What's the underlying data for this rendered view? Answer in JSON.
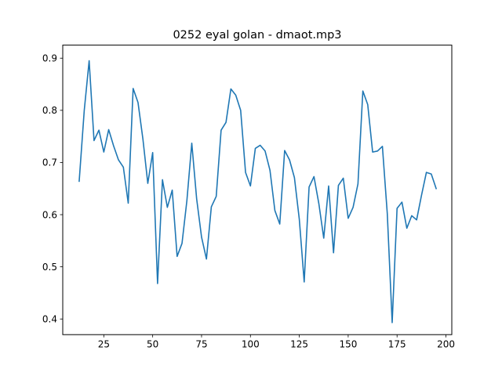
{
  "chart_data": {
    "type": "line",
    "title": "0252 eyal golan - dmaot.mp3",
    "xlabel": "",
    "ylabel": "",
    "xlim": [
      4,
      203
    ],
    "ylim": [
      0.37,
      0.925
    ],
    "grid": false,
    "xticks": [
      25,
      50,
      75,
      100,
      125,
      150,
      175,
      200
    ],
    "yticks": [
      0.4,
      0.5,
      0.6,
      0.7,
      0.8,
      0.9
    ],
    "xtick_labels": [
      "25",
      "50",
      "75",
      "100",
      "125",
      "150",
      "175",
      "200"
    ],
    "ytick_labels": [
      "0.4",
      "0.5",
      "0.6",
      "0.7",
      "0.8",
      "0.9"
    ],
    "line_color": "#1f77b4",
    "series": [
      {
        "x": [
          12.4,
          15.0,
          17.5,
          20.0,
          22.5,
          25.0,
          27.5,
          30.0,
          32.5,
          35.0,
          37.5,
          40.0,
          42.5,
          45.0,
          47.5,
          50.0,
          52.5,
          55.0,
          57.5,
          60.0,
          62.5,
          65.0,
          67.5,
          70.0,
          72.5,
          75.0,
          77.5,
          80.0,
          82.5,
          85.0,
          87.5,
          90.0,
          92.5,
          95.0,
          97.5,
          100.0,
          102.5,
          105.0,
          107.5,
          110.0,
          112.5,
          115.0,
          117.5,
          120.0,
          122.5,
          125.0,
          127.5,
          130.0,
          132.5,
          135.0,
          137.5,
          140.0,
          142.5,
          145.0,
          147.5,
          150.0,
          152.5,
          155.0,
          157.5,
          160.0,
          162.5,
          165.0,
          167.5,
          170.0,
          172.5,
          175.0,
          177.5,
          180.0,
          182.5,
          185.0,
          187.5,
          190.0,
          192.5,
          195.0
        ],
        "y": [
          0.664,
          0.8,
          0.895,
          0.742,
          0.762,
          0.72,
          0.763,
          0.732,
          0.705,
          0.691,
          0.622,
          0.842,
          0.815,
          0.745,
          0.66,
          0.719,
          0.468,
          0.667,
          0.614,
          0.647,
          0.52,
          0.545,
          0.627,
          0.737,
          0.63,
          0.557,
          0.515,
          0.615,
          0.635,
          0.762,
          0.777,
          0.841,
          0.829,
          0.8,
          0.681,
          0.655,
          0.727,
          0.733,
          0.722,
          0.685,
          0.608,
          0.582,
          0.723,
          0.705,
          0.671,
          0.591,
          0.471,
          0.653,
          0.673,
          0.621,
          0.555,
          0.655,
          0.527,
          0.656,
          0.67,
          0.593,
          0.614,
          0.659,
          0.837,
          0.811,
          0.72,
          0.722,
          0.731,
          0.602,
          0.393,
          0.612,
          0.624,
          0.574,
          0.598,
          0.59,
          0.637,
          0.681,
          0.678,
          0.65
        ]
      }
    ]
  }
}
